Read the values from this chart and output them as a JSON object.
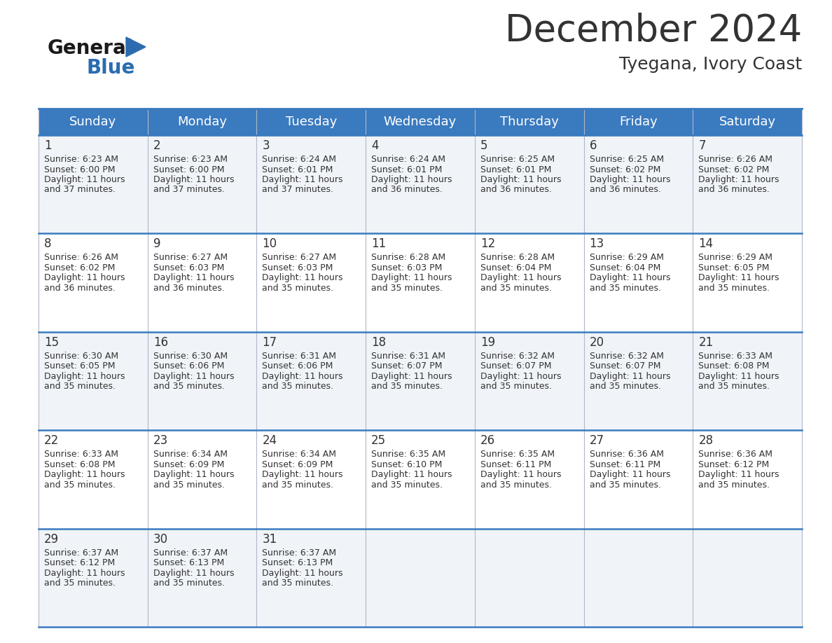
{
  "title": "December 2024",
  "subtitle": "Tyegana, Ivory Coast",
  "header_color": "#3a7abf",
  "header_text_color": "#ffffff",
  "days_of_week": [
    "Sunday",
    "Monday",
    "Tuesday",
    "Wednesday",
    "Thursday",
    "Friday",
    "Saturday"
  ],
  "weeks": [
    [
      {
        "day": 1,
        "sunrise": "6:23 AM",
        "sunset": "6:00 PM",
        "daylight_hours": 11,
        "daylight_minutes": 37
      },
      {
        "day": 2,
        "sunrise": "6:23 AM",
        "sunset": "6:00 PM",
        "daylight_hours": 11,
        "daylight_minutes": 37
      },
      {
        "day": 3,
        "sunrise": "6:24 AM",
        "sunset": "6:01 PM",
        "daylight_hours": 11,
        "daylight_minutes": 37
      },
      {
        "day": 4,
        "sunrise": "6:24 AM",
        "sunset": "6:01 PM",
        "daylight_hours": 11,
        "daylight_minutes": 36
      },
      {
        "day": 5,
        "sunrise": "6:25 AM",
        "sunset": "6:01 PM",
        "daylight_hours": 11,
        "daylight_minutes": 36
      },
      {
        "day": 6,
        "sunrise": "6:25 AM",
        "sunset": "6:02 PM",
        "daylight_hours": 11,
        "daylight_minutes": 36
      },
      {
        "day": 7,
        "sunrise": "6:26 AM",
        "sunset": "6:02 PM",
        "daylight_hours": 11,
        "daylight_minutes": 36
      }
    ],
    [
      {
        "day": 8,
        "sunrise": "6:26 AM",
        "sunset": "6:02 PM",
        "daylight_hours": 11,
        "daylight_minutes": 36
      },
      {
        "day": 9,
        "sunrise": "6:27 AM",
        "sunset": "6:03 PM",
        "daylight_hours": 11,
        "daylight_minutes": 36
      },
      {
        "day": 10,
        "sunrise": "6:27 AM",
        "sunset": "6:03 PM",
        "daylight_hours": 11,
        "daylight_minutes": 35
      },
      {
        "day": 11,
        "sunrise": "6:28 AM",
        "sunset": "6:03 PM",
        "daylight_hours": 11,
        "daylight_minutes": 35
      },
      {
        "day": 12,
        "sunrise": "6:28 AM",
        "sunset": "6:04 PM",
        "daylight_hours": 11,
        "daylight_minutes": 35
      },
      {
        "day": 13,
        "sunrise": "6:29 AM",
        "sunset": "6:04 PM",
        "daylight_hours": 11,
        "daylight_minutes": 35
      },
      {
        "day": 14,
        "sunrise": "6:29 AM",
        "sunset": "6:05 PM",
        "daylight_hours": 11,
        "daylight_minutes": 35
      }
    ],
    [
      {
        "day": 15,
        "sunrise": "6:30 AM",
        "sunset": "6:05 PM",
        "daylight_hours": 11,
        "daylight_minutes": 35
      },
      {
        "day": 16,
        "sunrise": "6:30 AM",
        "sunset": "6:06 PM",
        "daylight_hours": 11,
        "daylight_minutes": 35
      },
      {
        "day": 17,
        "sunrise": "6:31 AM",
        "sunset": "6:06 PM",
        "daylight_hours": 11,
        "daylight_minutes": 35
      },
      {
        "day": 18,
        "sunrise": "6:31 AM",
        "sunset": "6:07 PM",
        "daylight_hours": 11,
        "daylight_minutes": 35
      },
      {
        "day": 19,
        "sunrise": "6:32 AM",
        "sunset": "6:07 PM",
        "daylight_hours": 11,
        "daylight_minutes": 35
      },
      {
        "day": 20,
        "sunrise": "6:32 AM",
        "sunset": "6:07 PM",
        "daylight_hours": 11,
        "daylight_minutes": 35
      },
      {
        "day": 21,
        "sunrise": "6:33 AM",
        "sunset": "6:08 PM",
        "daylight_hours": 11,
        "daylight_minutes": 35
      }
    ],
    [
      {
        "day": 22,
        "sunrise": "6:33 AM",
        "sunset": "6:08 PM",
        "daylight_hours": 11,
        "daylight_minutes": 35
      },
      {
        "day": 23,
        "sunrise": "6:34 AM",
        "sunset": "6:09 PM",
        "daylight_hours": 11,
        "daylight_minutes": 35
      },
      {
        "day": 24,
        "sunrise": "6:34 AM",
        "sunset": "6:09 PM",
        "daylight_hours": 11,
        "daylight_minutes": 35
      },
      {
        "day": 25,
        "sunrise": "6:35 AM",
        "sunset": "6:10 PM",
        "daylight_hours": 11,
        "daylight_minutes": 35
      },
      {
        "day": 26,
        "sunrise": "6:35 AM",
        "sunset": "6:11 PM",
        "daylight_hours": 11,
        "daylight_minutes": 35
      },
      {
        "day": 27,
        "sunrise": "6:36 AM",
        "sunset": "6:11 PM",
        "daylight_hours": 11,
        "daylight_minutes": 35
      },
      {
        "day": 28,
        "sunrise": "6:36 AM",
        "sunset": "6:12 PM",
        "daylight_hours": 11,
        "daylight_minutes": 35
      }
    ],
    [
      {
        "day": 29,
        "sunrise": "6:37 AM",
        "sunset": "6:12 PM",
        "daylight_hours": 11,
        "daylight_minutes": 35
      },
      {
        "day": 30,
        "sunrise": "6:37 AM",
        "sunset": "6:13 PM",
        "daylight_hours": 11,
        "daylight_minutes": 35
      },
      {
        "day": 31,
        "sunrise": "6:37 AM",
        "sunset": "6:13 PM",
        "daylight_hours": 11,
        "daylight_minutes": 35
      },
      null,
      null,
      null,
      null
    ]
  ],
  "cell_bg_even": "#f0f4f8",
  "cell_bg_odd": "#ffffff",
  "cell_bg_last": "#f0f4f8",
  "border_color": "#3a7abf",
  "grid_line_color": "#b0b8c8",
  "text_color": "#333333",
  "logo_general_color": "#1a1a1a",
  "logo_blue_color": "#2b6cb0",
  "background_color": "#ffffff",
  "title_fontsize": 38,
  "subtitle_fontsize": 18,
  "header_fontsize": 13,
  "day_num_fontsize": 12,
  "info_fontsize": 9,
  "fig_width": 11.88,
  "fig_height": 9.18,
  "dpi": 100
}
